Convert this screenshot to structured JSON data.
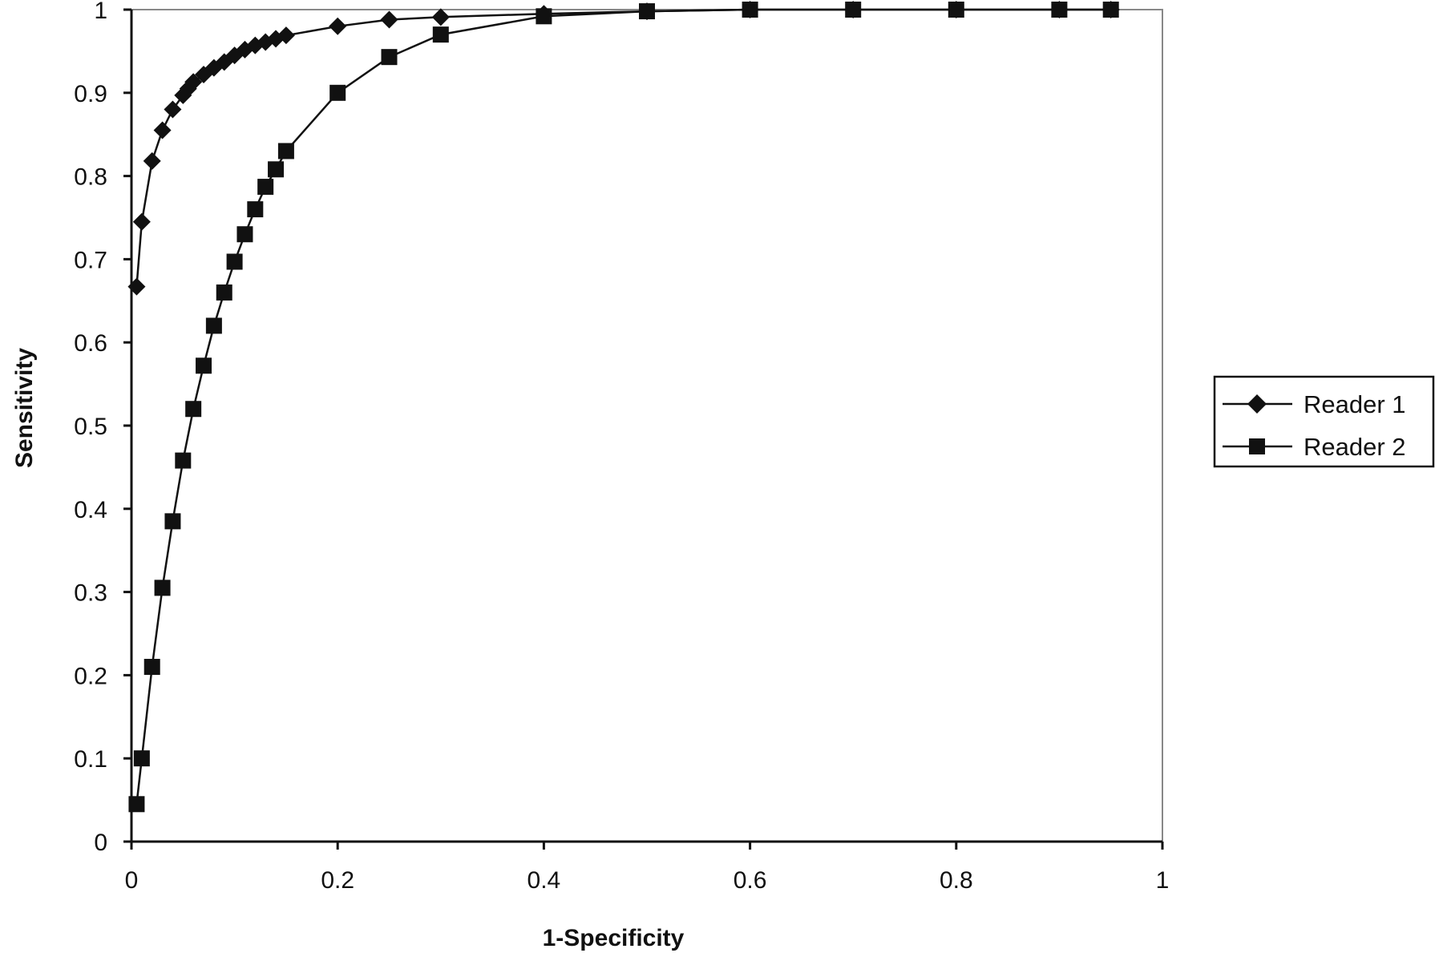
{
  "chart_data": {
    "type": "line",
    "title": "",
    "xlabel": "1-Specificity",
    "ylabel": "Sensitivity",
    "xlim": [
      0,
      1
    ],
    "ylim": [
      0,
      1
    ],
    "x_ticks": [
      "0",
      "0.2",
      "0.4",
      "0.6",
      "0.8",
      "1"
    ],
    "y_ticks": [
      "0",
      "0.1",
      "0.2",
      "0.3",
      "0.4",
      "0.5",
      "0.6",
      "0.7",
      "0.8",
      "0.9",
      "1"
    ],
    "grid": false,
    "legend_position": "right",
    "series": [
      {
        "name": "Reader 1",
        "marker": "diamond",
        "color": "#111111",
        "points": [
          [
            0.005,
            0.667
          ],
          [
            0.01,
            0.745
          ],
          [
            0.02,
            0.818
          ],
          [
            0.03,
            0.855
          ],
          [
            0.04,
            0.88
          ],
          [
            0.05,
            0.897
          ],
          [
            0.055,
            0.905
          ],
          [
            0.06,
            0.913
          ],
          [
            0.07,
            0.922
          ],
          [
            0.08,
            0.93
          ],
          [
            0.09,
            0.937
          ],
          [
            0.1,
            0.945
          ],
          [
            0.11,
            0.952
          ],
          [
            0.12,
            0.957
          ],
          [
            0.13,
            0.961
          ],
          [
            0.14,
            0.965
          ],
          [
            0.15,
            0.969
          ],
          [
            0.2,
            0.98
          ],
          [
            0.25,
            0.988
          ],
          [
            0.3,
            0.991
          ],
          [
            0.4,
            0.995
          ],
          [
            0.5,
            0.998
          ],
          [
            0.6,
            1.0
          ],
          [
            0.7,
            1.0
          ],
          [
            0.8,
            1.0
          ],
          [
            0.9,
            1.0
          ],
          [
            0.95,
            1.0
          ]
        ]
      },
      {
        "name": "Reader 2",
        "marker": "square",
        "color": "#111111",
        "points": [
          [
            0.005,
            0.045
          ],
          [
            0.01,
            0.1
          ],
          [
            0.02,
            0.21
          ],
          [
            0.03,
            0.305
          ],
          [
            0.04,
            0.385
          ],
          [
            0.05,
            0.458
          ],
          [
            0.06,
            0.52
          ],
          [
            0.07,
            0.572
          ],
          [
            0.08,
            0.62
          ],
          [
            0.09,
            0.66
          ],
          [
            0.1,
            0.697
          ],
          [
            0.11,
            0.73
          ],
          [
            0.12,
            0.76
          ],
          [
            0.13,
            0.787
          ],
          [
            0.14,
            0.808
          ],
          [
            0.15,
            0.83
          ],
          [
            0.2,
            0.9
          ],
          [
            0.25,
            0.943
          ],
          [
            0.3,
            0.97
          ],
          [
            0.4,
            0.992
          ],
          [
            0.5,
            0.998
          ],
          [
            0.6,
            1.0
          ],
          [
            0.7,
            1.0
          ],
          [
            0.8,
            1.0
          ],
          [
            0.9,
            1.0
          ],
          [
            0.95,
            1.0
          ]
        ]
      }
    ]
  }
}
